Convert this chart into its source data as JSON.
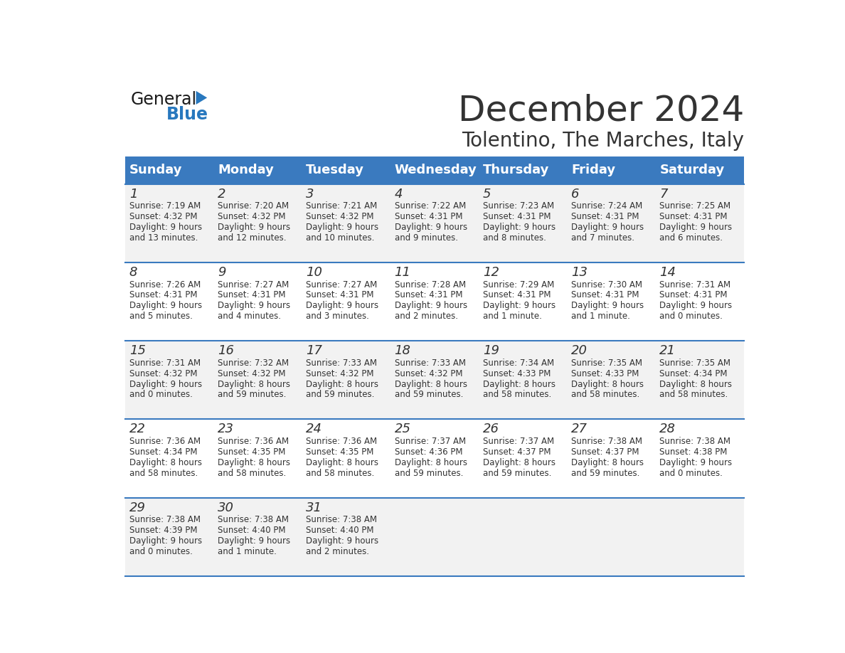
{
  "title": "December 2024",
  "subtitle": "Tolentino, The Marches, Italy",
  "header_color": "#3a7abf",
  "header_text_color": "#ffffff",
  "day_names": [
    "Sunday",
    "Monday",
    "Tuesday",
    "Wednesday",
    "Thursday",
    "Friday",
    "Saturday"
  ],
  "bg_color": "#ffffff",
  "row_bg_even": "#f2f2f2",
  "row_bg_odd": "#ffffff",
  "cell_border_color": "#3a7abf",
  "date_color": "#333333",
  "text_color": "#333333",
  "days": [
    {
      "day": 1,
      "col": 0,
      "row": 0,
      "sunrise": "7:19 AM",
      "sunset": "4:32 PM",
      "daylight": "9 hours and 13 minutes."
    },
    {
      "day": 2,
      "col": 1,
      "row": 0,
      "sunrise": "7:20 AM",
      "sunset": "4:32 PM",
      "daylight": "9 hours and 12 minutes."
    },
    {
      "day": 3,
      "col": 2,
      "row": 0,
      "sunrise": "7:21 AM",
      "sunset": "4:32 PM",
      "daylight": "9 hours and 10 minutes."
    },
    {
      "day": 4,
      "col": 3,
      "row": 0,
      "sunrise": "7:22 AM",
      "sunset": "4:31 PM",
      "daylight": "9 hours and 9 minutes."
    },
    {
      "day": 5,
      "col": 4,
      "row": 0,
      "sunrise": "7:23 AM",
      "sunset": "4:31 PM",
      "daylight": "9 hours and 8 minutes."
    },
    {
      "day": 6,
      "col": 5,
      "row": 0,
      "sunrise": "7:24 AM",
      "sunset": "4:31 PM",
      "daylight": "9 hours and 7 minutes."
    },
    {
      "day": 7,
      "col": 6,
      "row": 0,
      "sunrise": "7:25 AM",
      "sunset": "4:31 PM",
      "daylight": "9 hours and 6 minutes."
    },
    {
      "day": 8,
      "col": 0,
      "row": 1,
      "sunrise": "7:26 AM",
      "sunset": "4:31 PM",
      "daylight": "9 hours and 5 minutes."
    },
    {
      "day": 9,
      "col": 1,
      "row": 1,
      "sunrise": "7:27 AM",
      "sunset": "4:31 PM",
      "daylight": "9 hours and 4 minutes."
    },
    {
      "day": 10,
      "col": 2,
      "row": 1,
      "sunrise": "7:27 AM",
      "sunset": "4:31 PM",
      "daylight": "9 hours and 3 minutes."
    },
    {
      "day": 11,
      "col": 3,
      "row": 1,
      "sunrise": "7:28 AM",
      "sunset": "4:31 PM",
      "daylight": "9 hours and 2 minutes."
    },
    {
      "day": 12,
      "col": 4,
      "row": 1,
      "sunrise": "7:29 AM",
      "sunset": "4:31 PM",
      "daylight": "9 hours and 1 minute."
    },
    {
      "day": 13,
      "col": 5,
      "row": 1,
      "sunrise": "7:30 AM",
      "sunset": "4:31 PM",
      "daylight": "9 hours and 1 minute."
    },
    {
      "day": 14,
      "col": 6,
      "row": 1,
      "sunrise": "7:31 AM",
      "sunset": "4:31 PM",
      "daylight": "9 hours and 0 minutes."
    },
    {
      "day": 15,
      "col": 0,
      "row": 2,
      "sunrise": "7:31 AM",
      "sunset": "4:32 PM",
      "daylight": "9 hours and 0 minutes."
    },
    {
      "day": 16,
      "col": 1,
      "row": 2,
      "sunrise": "7:32 AM",
      "sunset": "4:32 PM",
      "daylight": "8 hours and 59 minutes."
    },
    {
      "day": 17,
      "col": 2,
      "row": 2,
      "sunrise": "7:33 AM",
      "sunset": "4:32 PM",
      "daylight": "8 hours and 59 minutes."
    },
    {
      "day": 18,
      "col": 3,
      "row": 2,
      "sunrise": "7:33 AM",
      "sunset": "4:32 PM",
      "daylight": "8 hours and 59 minutes."
    },
    {
      "day": 19,
      "col": 4,
      "row": 2,
      "sunrise": "7:34 AM",
      "sunset": "4:33 PM",
      "daylight": "8 hours and 58 minutes."
    },
    {
      "day": 20,
      "col": 5,
      "row": 2,
      "sunrise": "7:35 AM",
      "sunset": "4:33 PM",
      "daylight": "8 hours and 58 minutes."
    },
    {
      "day": 21,
      "col": 6,
      "row": 2,
      "sunrise": "7:35 AM",
      "sunset": "4:34 PM",
      "daylight": "8 hours and 58 minutes."
    },
    {
      "day": 22,
      "col": 0,
      "row": 3,
      "sunrise": "7:36 AM",
      "sunset": "4:34 PM",
      "daylight": "8 hours and 58 minutes."
    },
    {
      "day": 23,
      "col": 1,
      "row": 3,
      "sunrise": "7:36 AM",
      "sunset": "4:35 PM",
      "daylight": "8 hours and 58 minutes."
    },
    {
      "day": 24,
      "col": 2,
      "row": 3,
      "sunrise": "7:36 AM",
      "sunset": "4:35 PM",
      "daylight": "8 hours and 58 minutes."
    },
    {
      "day": 25,
      "col": 3,
      "row": 3,
      "sunrise": "7:37 AM",
      "sunset": "4:36 PM",
      "daylight": "8 hours and 59 minutes."
    },
    {
      "day": 26,
      "col": 4,
      "row": 3,
      "sunrise": "7:37 AM",
      "sunset": "4:37 PM",
      "daylight": "8 hours and 59 minutes."
    },
    {
      "day": 27,
      "col": 5,
      "row": 3,
      "sunrise": "7:38 AM",
      "sunset": "4:37 PM",
      "daylight": "8 hours and 59 minutes."
    },
    {
      "day": 28,
      "col": 6,
      "row": 3,
      "sunrise": "7:38 AM",
      "sunset": "4:38 PM",
      "daylight": "9 hours and 0 minutes."
    },
    {
      "day": 29,
      "col": 0,
      "row": 4,
      "sunrise": "7:38 AM",
      "sunset": "4:39 PM",
      "daylight": "9 hours and 0 minutes."
    },
    {
      "day": 30,
      "col": 1,
      "row": 4,
      "sunrise": "7:38 AM",
      "sunset": "4:40 PM",
      "daylight": "9 hours and 1 minute."
    },
    {
      "day": 31,
      "col": 2,
      "row": 4,
      "sunrise": "7:38 AM",
      "sunset": "4:40 PM",
      "daylight": "9 hours and 2 minutes."
    }
  ],
  "logo_general_color": "#1a1a1a",
  "logo_blue_color": "#2878be",
  "title_fontsize": 36,
  "subtitle_fontsize": 20,
  "header_fontsize": 13,
  "day_num_fontsize": 13,
  "cell_text_fontsize": 8.5
}
